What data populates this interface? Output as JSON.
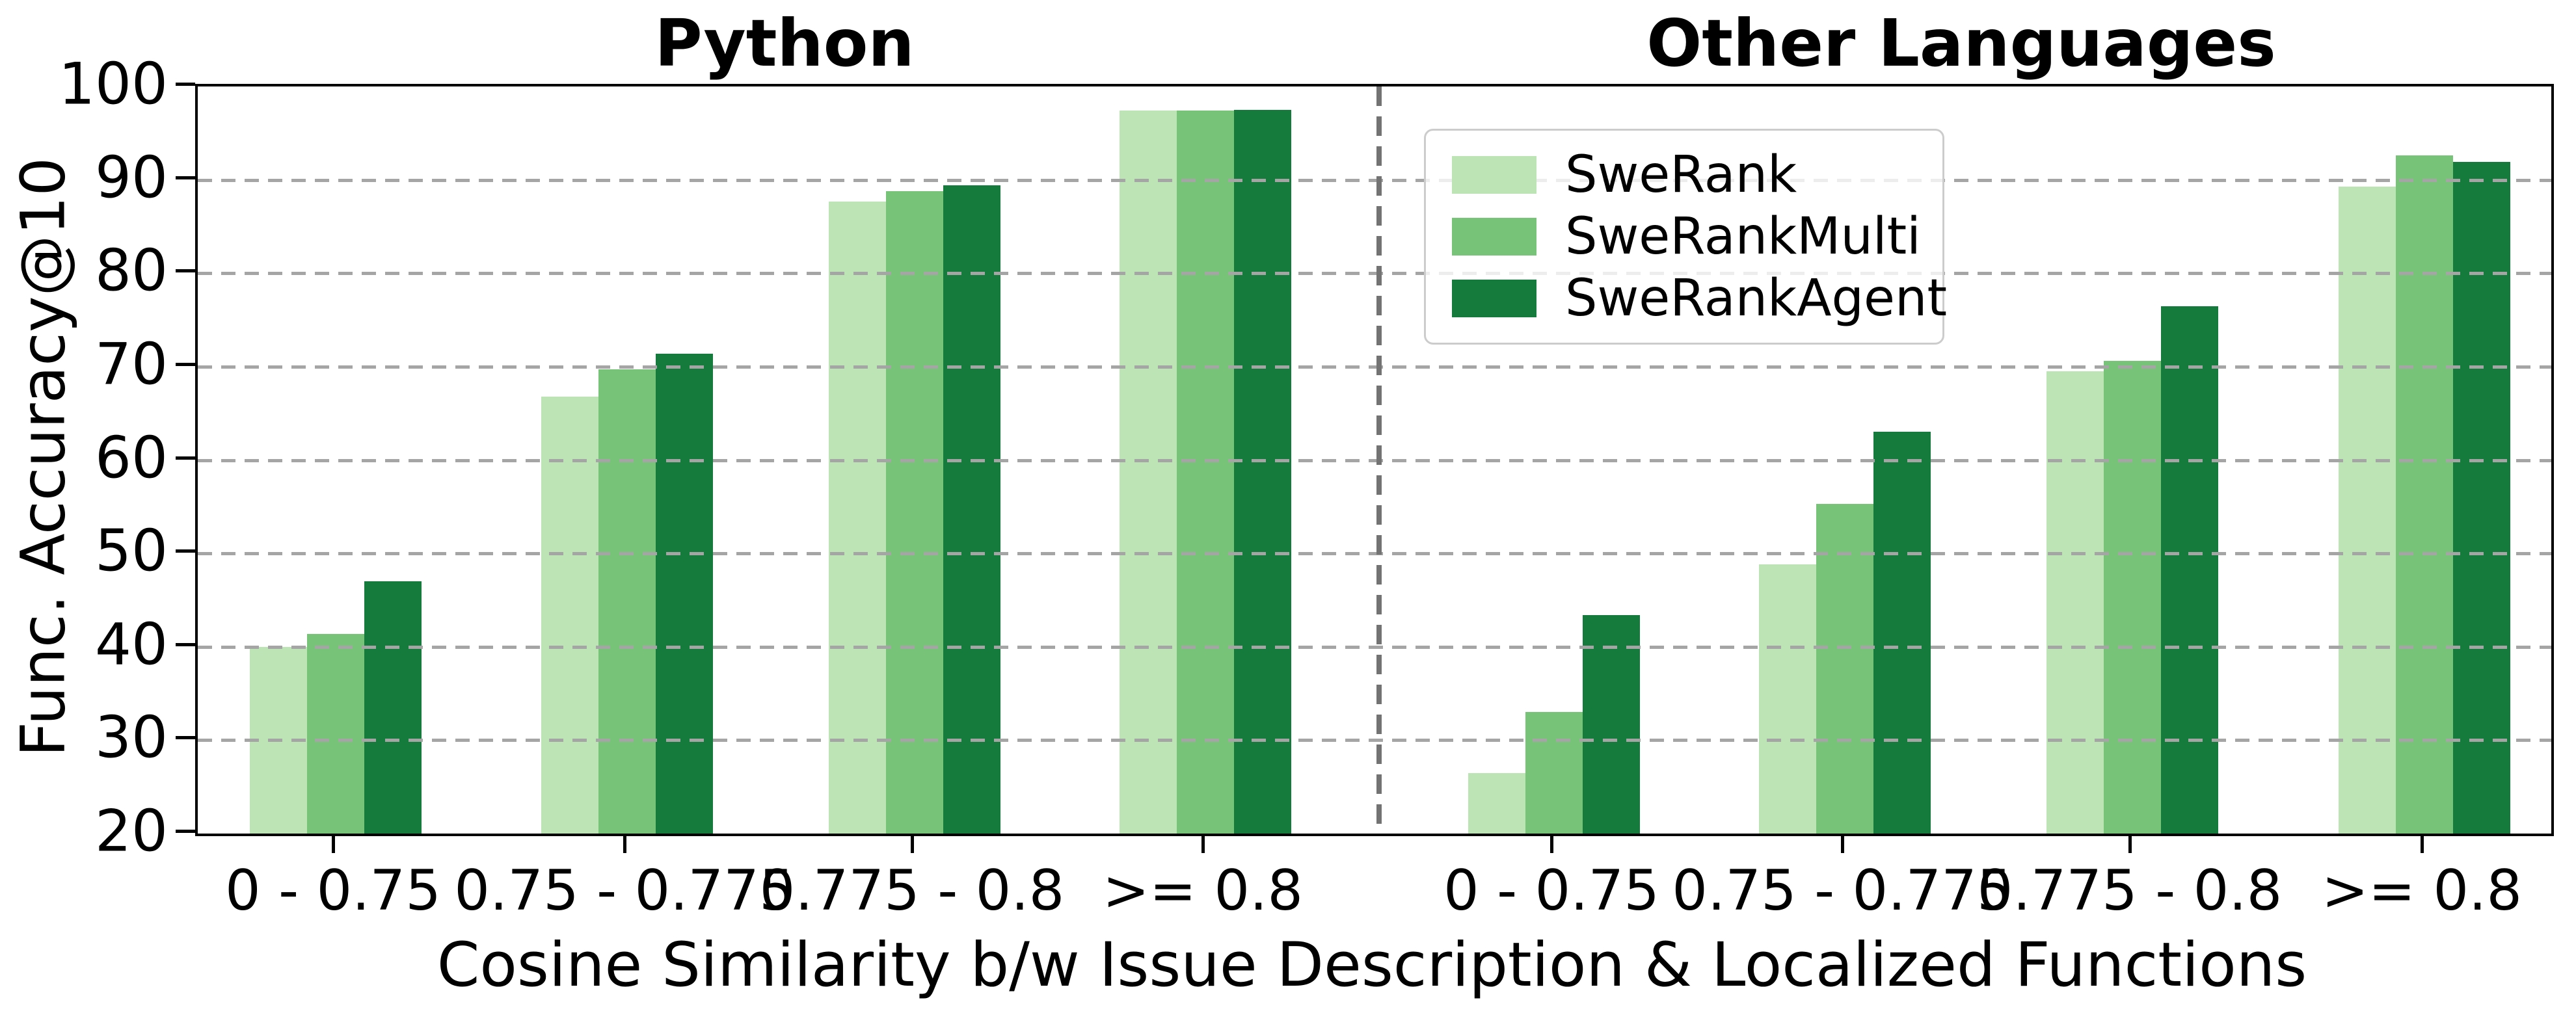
{
  "figure": {
    "left_panel_title": "Python",
    "right_panel_title": "Other Languages",
    "ylabel": "Func. Accuracy@10",
    "xlabel": "Cosine Similarity b/w Issue Description & Localized Functions"
  },
  "legend": {
    "items": [
      {
        "label": "SweRank",
        "color": "#bce4b5"
      },
      {
        "label": "SweRankMulti",
        "color": "#77c478"
      },
      {
        "label": "SweRankAgent",
        "color": "#157b3c"
      }
    ]
  },
  "colors": {
    "swerank": "#bce4b5",
    "swerankmulti": "#77c478",
    "swerankagent": "#157b3c",
    "gridline": "#a5a5a5",
    "panel_divider": "#737373",
    "axis_spine": "#000000"
  },
  "chart_data": {
    "type": "bar",
    "title": "",
    "xlabel": "Cosine Similarity b/w Issue Description & Localized Functions",
    "ylabel": "Func. Accuracy@10",
    "ylim": [
      20,
      100
    ],
    "yticks": [
      20,
      30,
      40,
      50,
      60,
      70,
      80,
      90,
      100
    ],
    "grid": "horizontal dashed, drawn above bars",
    "legend_position": "upper left of right panel",
    "categories": [
      "0 - 0.75",
      "0.75 - 0.775",
      "0.775 - 0.8",
      ">= 0.8"
    ],
    "panels": [
      {
        "title": "Python",
        "series": [
          {
            "name": "SweRank",
            "color": "#bce4b5",
            "values": [
              40.0,
              66.8,
              87.7,
              97.4
            ]
          },
          {
            "name": "SweRankMulti",
            "color": "#77c478",
            "values": [
              41.4,
              69.7,
              88.8,
              97.4
            ]
          },
          {
            "name": "SweRankAgent",
            "color": "#157b3c",
            "values": [
              47.0,
              71.4,
              89.4,
              97.5
            ]
          }
        ]
      },
      {
        "title": "Other Languages",
        "series": [
          {
            "name": "SweRank",
            "color": "#bce4b5",
            "values": [
              26.5,
              48.8,
              69.5,
              89.3
            ]
          },
          {
            "name": "SweRankMulti",
            "color": "#77c478",
            "values": [
              33.0,
              55.3,
              70.6,
              92.6
            ]
          },
          {
            "name": "SweRankAgent",
            "color": "#157b3c",
            "values": [
              43.4,
              63.0,
              76.5,
              91.9
            ]
          }
        ]
      }
    ]
  }
}
